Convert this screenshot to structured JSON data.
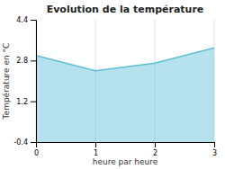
{
  "chart_data": {
    "type": "area",
    "title": "Evolution de la température",
    "x_label": "heure par heure",
    "y_label": "Température en °C",
    "x": [
      0,
      1,
      2,
      3
    ],
    "values": [
      3.0,
      2.4,
      2.7,
      3.3
    ],
    "color": "#5bbfd4",
    "xlim": [
      0,
      3
    ],
    "ylim": [
      -0.4,
      4.4
    ],
    "xticks": [
      0,
      1,
      2,
      3
    ],
    "yticks": [
      -0.4,
      1.2,
      2.8,
      4.4
    ],
    "grid": "x"
  }
}
